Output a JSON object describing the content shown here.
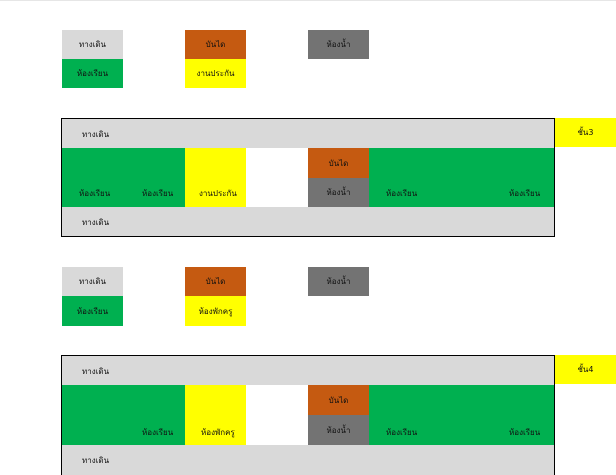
{
  "legend_top": {
    "walkway": "ทางเดิน",
    "stairs": "บันได",
    "restroom": "ห้องน้ำ",
    "classroom": "ห้องเรียน",
    "assurance": "งานประกัน"
  },
  "floor3": {
    "floor_label": "ชั้น3",
    "walkway_top": "ทางเดิน",
    "walkway_bottom": "ทางเดิน",
    "classroom_1": "ห้องเรียน",
    "classroom_2": "ห้องเรียน",
    "assurance": "งานประกัน",
    "stairs": "บันได",
    "restroom": "ห้องน้ำ",
    "classroom_3": "ห้องเรียน",
    "classroom_4": "ห้องเรียน"
  },
  "legend_mid": {
    "walkway": "ทางเดิน",
    "stairs": "บันได",
    "restroom": "ห้องน้ำ",
    "classroom": "ห้องเรียน",
    "teacher_room": "ห้องพักครู"
  },
  "floor4": {
    "floor_label": "ชั้น4",
    "walkway_top": "ทางเดิน",
    "walkway_bottom": "ทางเดิน",
    "classroom_1": "ห้องเรียน",
    "teacher_room": "ห้องพักครู",
    "stairs": "บันได",
    "restroom": "ห้องน้ำ",
    "classroom_3": "ห้องเรียน",
    "classroom_4": "ห้องเรียน"
  },
  "colors": {
    "walkway": "#d9d9d9",
    "classroom": "#00b050",
    "assurance_teacher": "#ffff00",
    "stairs": "#c55a11",
    "restroom": "#737373"
  }
}
